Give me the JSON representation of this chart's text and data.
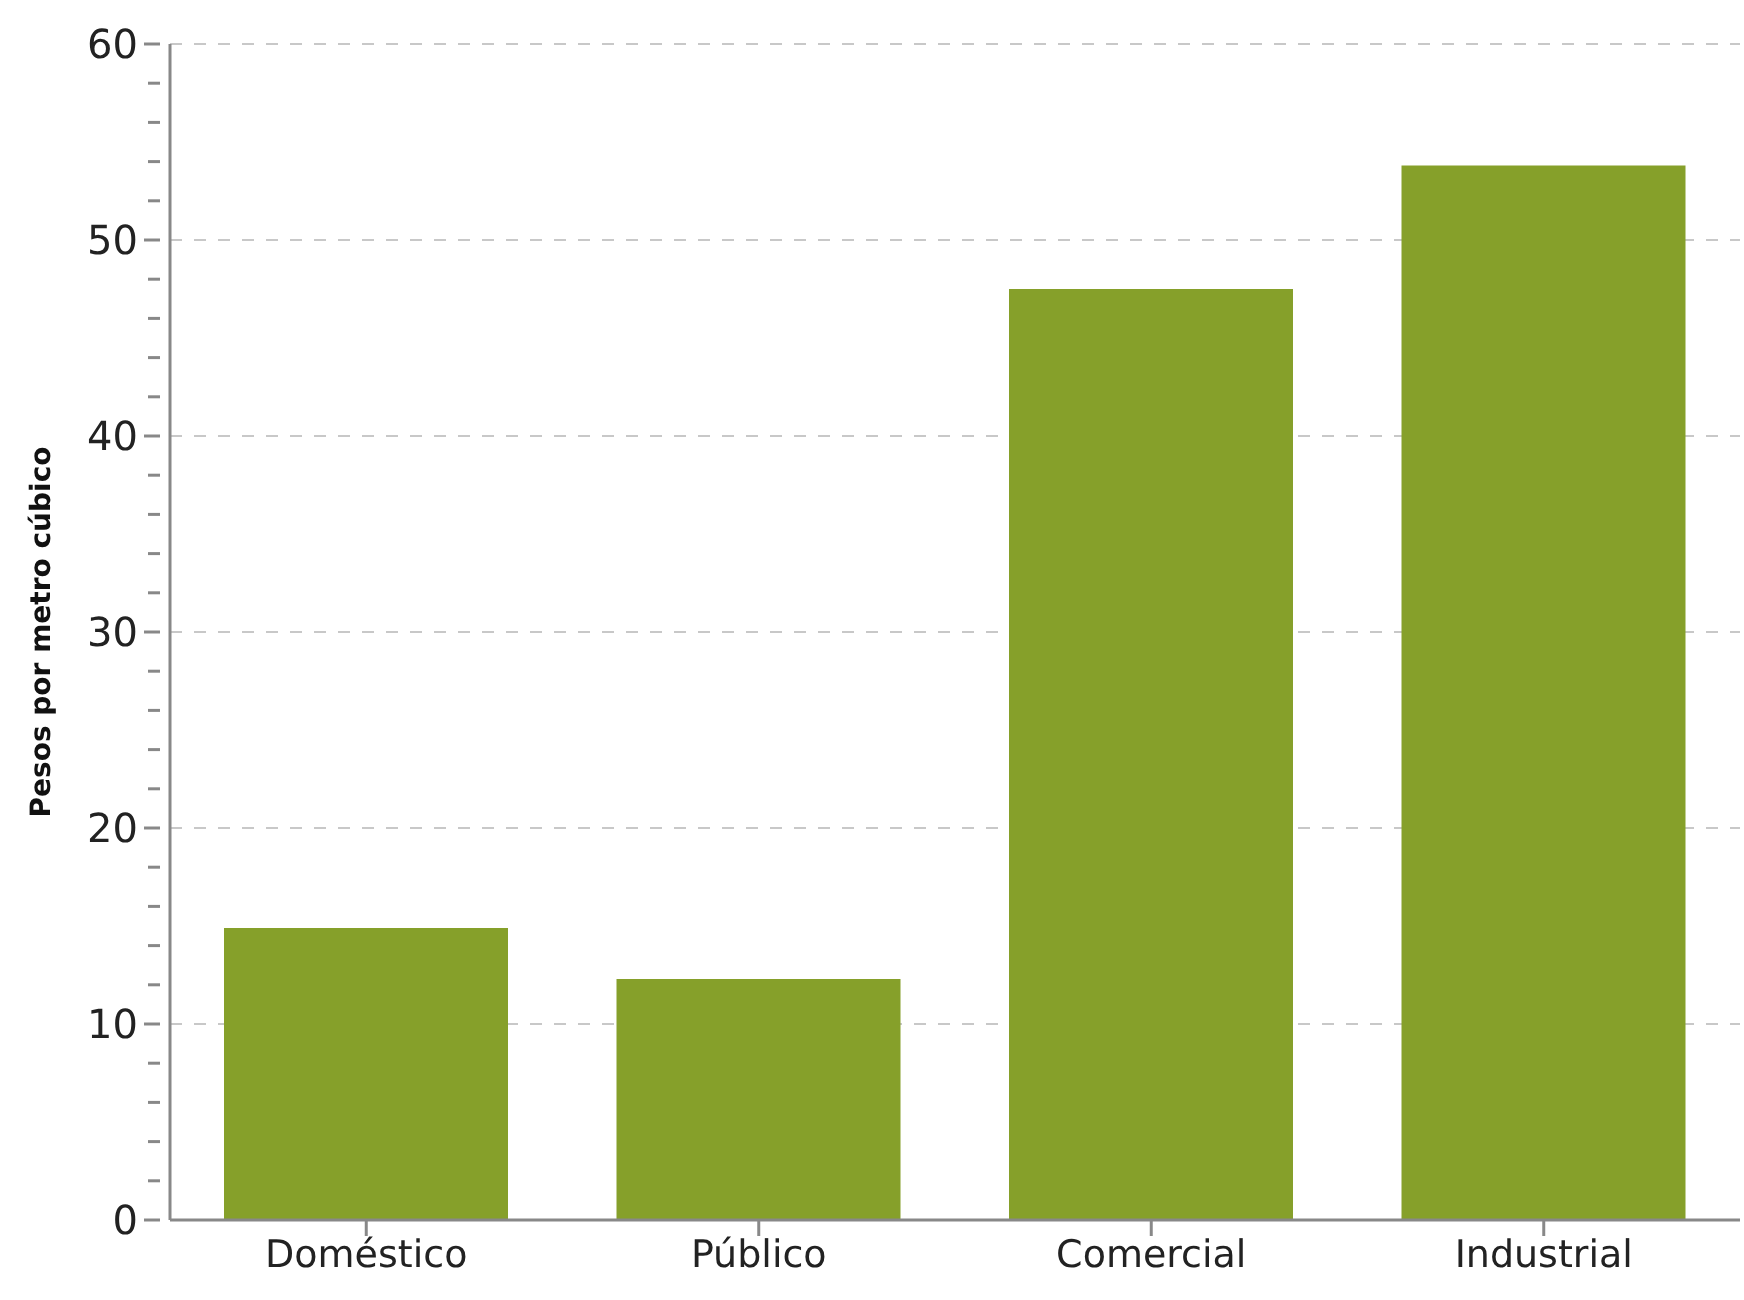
{
  "chart_data": {
    "type": "bar",
    "ylabel": "Pesos por metro cúbico",
    "categories": [
      "Doméstico",
      "Público",
      "Comercial",
      "Industrial"
    ],
    "values": [
      14.9,
      12.3,
      47.5,
      53.8
    ],
    "color": "#86a02a",
    "ylim": [
      0,
      60
    ],
    "yticks": [
      0,
      {
        "value": 2,
        "label": null
      },
      {
        "value": 4,
        "label": null
      },
      {
        "value": 6,
        "label": null
      },
      {
        "value": 8,
        "label": null
      },
      10,
      {
        "value": 12,
        "label": null
      },
      {
        "value": 14,
        "label": null
      },
      {
        "value": 16,
        "label": null
      },
      {
        "value": 18,
        "label": null
      },
      20,
      {
        "value": 22,
        "label": null
      },
      {
        "value": 24,
        "label": null
      },
      {
        "value": 26,
        "label": null
      },
      {
        "value": 28,
        "label": null
      },
      30,
      {
        "value": 32,
        "label": null
      },
      {
        "value": 34,
        "label": null
      },
      {
        "value": 36,
        "label": null
      },
      {
        "value": 38,
        "label": null
      },
      40,
      {
        "value": 42,
        "label": null
      },
      {
        "value": 44,
        "label": null
      },
      {
        "value": 46,
        "label": null
      },
      {
        "value": 48,
        "label": null
      },
      50,
      {
        "value": 52,
        "label": null
      },
      {
        "value": 54,
        "label": null
      },
      {
        "value": 56,
        "label": null
      },
      {
        "value": 58,
        "label": null
      },
      60
    ],
    "grid": "y"
  }
}
